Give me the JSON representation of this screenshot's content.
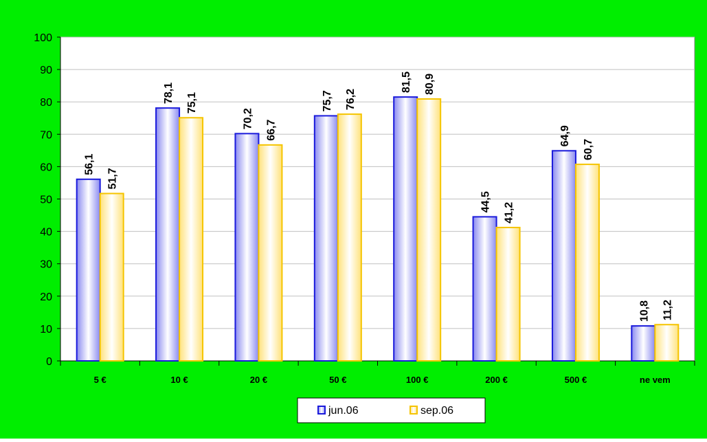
{
  "chart_data": {
    "type": "bar",
    "title": "",
    "xlabel": "",
    "ylabel": "",
    "ylim": [
      0,
      100
    ],
    "y_ticks": [
      "0",
      "10",
      "20",
      "30",
      "40",
      "50",
      "60",
      "70",
      "80",
      "90",
      "100"
    ],
    "categories": [
      "5 €",
      "10 €",
      "20 €",
      "50 €",
      "100 €",
      "200 €",
      "500 €",
      "ne vem"
    ],
    "series": [
      {
        "name": "jun.06",
        "values": [
          56.1,
          78.1,
          70.2,
          75.7,
          81.5,
          44.5,
          64.9,
          10.8
        ],
        "labels": [
          "56,1",
          "78,1",
          "70,2",
          "75,7",
          "81,5",
          "44,5",
          "64,9",
          "10,8"
        ],
        "color": "#1a1adb"
      },
      {
        "name": "sep.06",
        "values": [
          51.7,
          75.1,
          66.7,
          76.2,
          80.9,
          41.2,
          60.7,
          11.2
        ],
        "labels": [
          "51,7",
          "75,1",
          "66,7",
          "76,2",
          "80,9",
          "41,2",
          "60,7",
          "11,2"
        ],
        "color": "#f5c400"
      }
    ],
    "grid": true,
    "legend_position": "bottom-center"
  },
  "colors": {
    "background": "#00ee00",
    "plot_area": "#ffffff",
    "gridline": "#c0c0c0",
    "axis": "#000000"
  }
}
